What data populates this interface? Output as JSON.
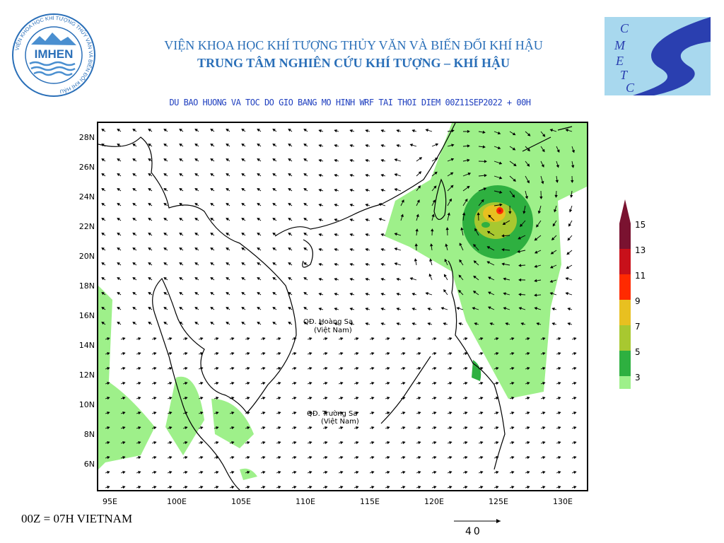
{
  "header": {
    "institute_name": "VIỆN KHOA HỌC KHÍ TƯỢNG THỦY VĂN VÀ BIẾN ĐỔI KHÍ HẬU",
    "center_name": "TRUNG TÂM NGHIÊN CỨU KHÍ TƯỢNG – KHÍ HẬU",
    "left_logo": {
      "ring_text": "VIỆN KHOA HỌC KHÍ TƯỢNG THỦY VĂN VÀ BIẾN ĐỔI KHÍ HẬU",
      "center_text": "IMHEN"
    },
    "right_logo": {
      "letters": [
        "C",
        "M",
        "E",
        "T",
        "C"
      ]
    }
  },
  "map_title": "DU BAO HUONG VA TOC DO GIO BANG MO HINH WRF TAI THOI DIEM  00Z11SEP2022 + 00H",
  "axes": {
    "lat_labels": [
      "28N",
      "26N",
      "24N",
      "22N",
      "20N",
      "18N",
      "16N",
      "14N",
      "12N",
      "10N",
      "8N",
      "6N"
    ],
    "lon_labels": [
      "95E",
      "100E",
      "105E",
      "110E",
      "115E",
      "120E",
      "125E",
      "130E"
    ]
  },
  "annotations": [
    {
      "lines": [
        "QĐ. Hoàng Sa",
        "(Việt Nam)"
      ]
    },
    {
      "lines": [
        "QĐ. Trường Sa",
        "(Việt Nam)"
      ]
    }
  ],
  "legend": {
    "levels": [
      "15",
      "13",
      "11",
      "9",
      "7",
      "5",
      "3"
    ],
    "colors": [
      "#7a1230",
      "#c8101a",
      "#ff2a00",
      "#e8c020",
      "#a8c830",
      "#2eb040",
      "#9ef08a"
    ]
  },
  "footer": {
    "time_note": "00Z = 07H VIETNAM",
    "reference_vector": "40"
  }
}
